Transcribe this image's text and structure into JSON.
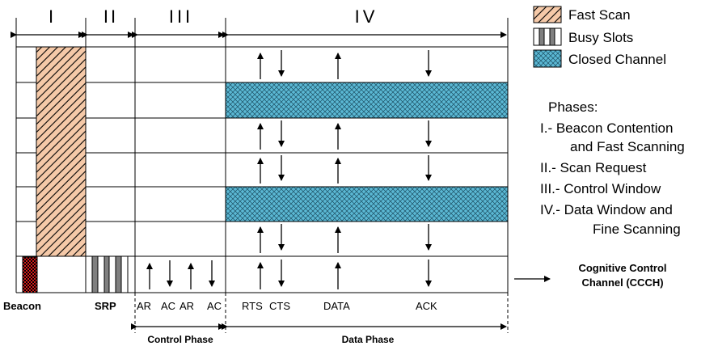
{
  "phase_headers": [
    "I",
    "II",
    "III",
    "IV"
  ],
  "legend": {
    "items": [
      {
        "label": "Fast Scan",
        "pattern": "diagonal-hatch"
      },
      {
        "label": "Busy Slots",
        "pattern": "vertical-stripes"
      },
      {
        "label": "Closed Channel",
        "pattern": "crosshatch",
        "color": "#5BB8D4"
      }
    ]
  },
  "phases": {
    "title": "Phases:",
    "lines": [
      "I.- Beacon Contention",
      "and Fast Scanning",
      "II.- Scan Request",
      "III.- Control Window",
      "IV.- Data Window and",
      "Fine Scanning"
    ]
  },
  "ccch": {
    "line1": "Cognitive Control",
    "line2": "Channel (CCCH)"
  },
  "bottom_labels": {
    "beacon": "Beacon",
    "srp": "SRP",
    "ar1": "AR",
    "ac1": "AC",
    "ar2": "AR",
    "ac2": "AC",
    "rts": "RTS",
    "cts": "CTS",
    "data": "DATA",
    "ack": "ACK"
  },
  "phase_spans": {
    "control": "Control Phase",
    "data": "Data Phase"
  },
  "colors": {
    "fast_scan": "#F5C9A8",
    "closed_channel": "#5BB8D4",
    "beacon": "#D11B1B"
  }
}
